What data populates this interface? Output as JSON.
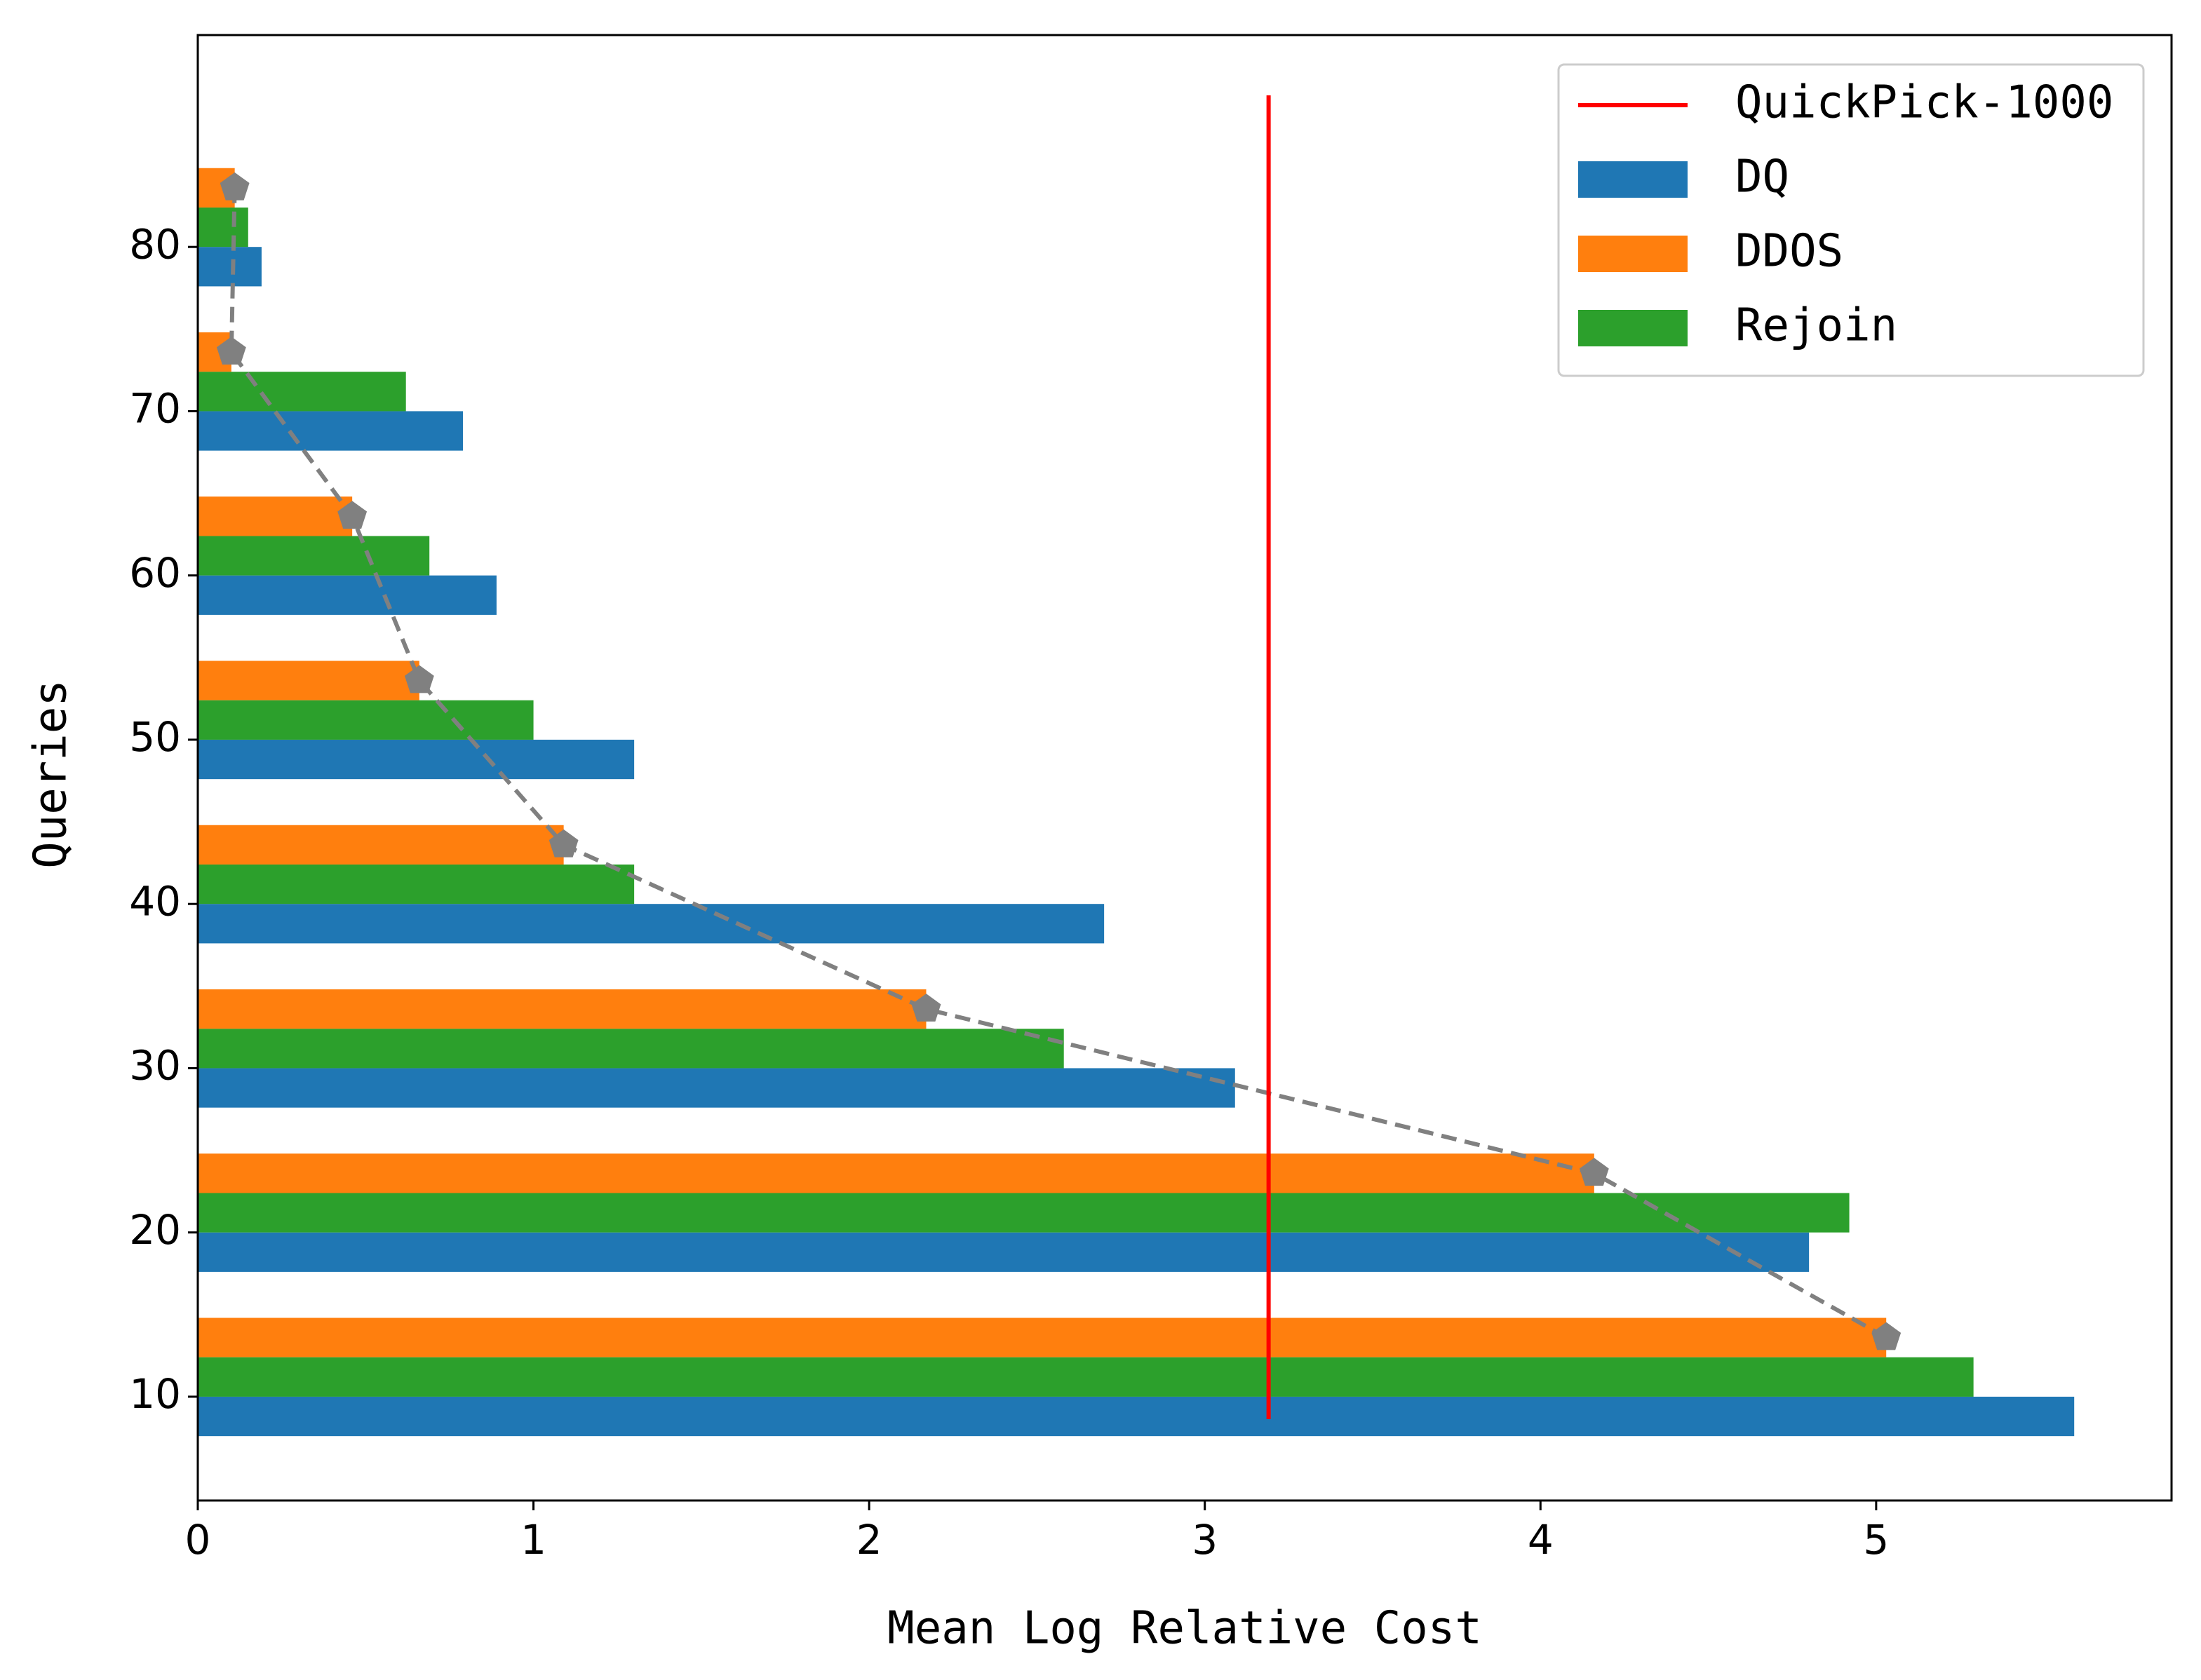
{
  "chart_data": {
    "type": "barh",
    "xlabel": "Mean Log Relative Cost",
    "ylabel": "Queries",
    "y": [
      10,
      20,
      30,
      40,
      50,
      60,
      70,
      80
    ],
    "series": [
      {
        "name": "DQ",
        "color": "#1f77b4",
        "values": [
          5.59,
          4.8,
          3.09,
          2.7,
          1.3,
          0.89,
          0.79,
          0.19
        ]
      },
      {
        "name": "DDOS",
        "color": "#ff7f0e",
        "values": [
          5.03,
          4.16,
          2.17,
          1.09,
          0.66,
          0.46,
          0.1,
          0.11
        ],
        "trend_line": true,
        "trend_color": "#808080"
      },
      {
        "name": "Rejoin",
        "color": "#2ca02c",
        "values": [
          5.29,
          4.92,
          2.58,
          1.3,
          1.0,
          0.69,
          0.62,
          0.15
        ]
      }
    ],
    "reference_line": {
      "name": "QuickPick-1000",
      "color": "#ff0000",
      "value": 3.19
    },
    "xlim": [
      0,
      5.88
    ],
    "xticks": [
      0,
      1,
      2,
      3,
      4,
      5
    ],
    "ylim": [
      3.68,
      92.9
    ],
    "yticks": [
      10,
      20,
      30,
      40,
      50,
      60,
      70,
      80
    ],
    "grid": false,
    "legend_position": "upper right"
  }
}
